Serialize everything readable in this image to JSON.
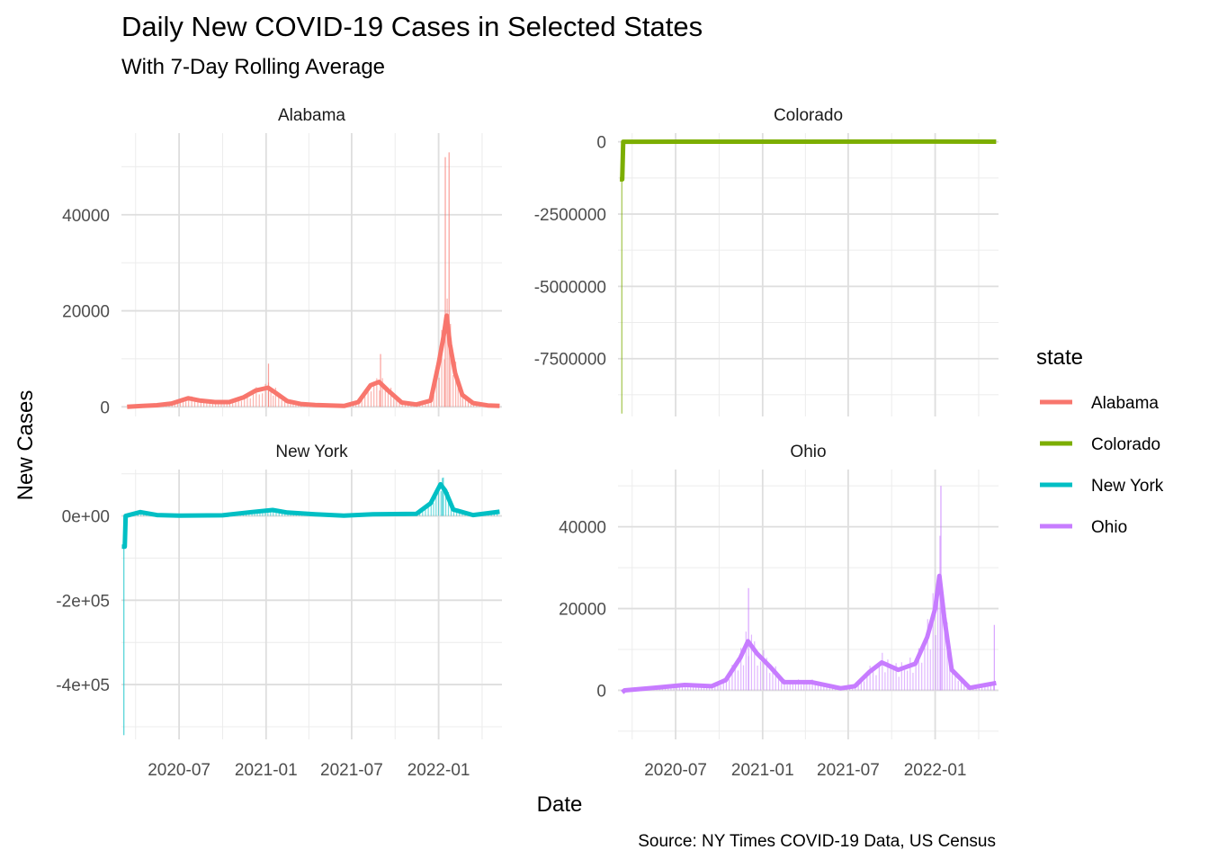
{
  "chart_data": {
    "type": "bar+line",
    "title": "Daily New COVID-19 Cases in Selected States",
    "subtitle": "With 7-Day Rolling Average",
    "xlabel": "Date",
    "ylabel": "New Cases",
    "caption": "Source: NY Times COVID-19 Data, US Census",
    "legend": {
      "title": "state",
      "position": "right",
      "entries": [
        {
          "name": "Alabama",
          "color": "#F8766D"
        },
        {
          "name": "Colorado",
          "color": "#7CAE00"
        },
        {
          "name": "New York",
          "color": "#00BFC4"
        },
        {
          "name": "Ohio",
          "color": "#C77CFF"
        }
      ]
    },
    "x_ticks": [
      "2020-07",
      "2021-01",
      "2021-07",
      "2022-01"
    ],
    "x_tick_dates": [
      "2020-07-01",
      "2021-01-01",
      "2021-07-01",
      "2022-01-01"
    ],
    "xlim": [
      "2020-03-01",
      "2022-05-15"
    ],
    "grid": true,
    "panels": [
      {
        "state": "Alabama",
        "color": "#F8766D",
        "ylim": [
          -2000,
          57000
        ],
        "y_ticks": [
          0,
          20000,
          40000
        ],
        "y_tick_labels": [
          "0",
          "20000",
          "40000"
        ],
        "rolling_avg": [
          [
            "2020-03-13",
            0
          ],
          [
            "2020-04-15",
            200
          ],
          [
            "2020-05-15",
            350
          ],
          [
            "2020-06-15",
            700
          ],
          [
            "2020-07-20",
            1800
          ],
          [
            "2020-08-15",
            1300
          ],
          [
            "2020-09-15",
            1000
          ],
          [
            "2020-10-15",
            1000
          ],
          [
            "2020-11-15",
            2000
          ],
          [
            "2020-12-10",
            3400
          ],
          [
            "2021-01-05",
            4000
          ],
          [
            "2021-01-20",
            3000
          ],
          [
            "2021-02-15",
            1200
          ],
          [
            "2021-03-15",
            600
          ],
          [
            "2021-04-15",
            400
          ],
          [
            "2021-05-15",
            300
          ],
          [
            "2021-06-15",
            200
          ],
          [
            "2021-07-15",
            1000
          ],
          [
            "2021-08-10",
            4500
          ],
          [
            "2021-08-28",
            5200
          ],
          [
            "2021-09-15",
            3500
          ],
          [
            "2021-10-15",
            900
          ],
          [
            "2021-11-15",
            500
          ],
          [
            "2021-12-15",
            1300
          ],
          [
            "2022-01-01",
            9000
          ],
          [
            "2022-01-12",
            15000
          ],
          [
            "2022-01-18",
            19000
          ],
          [
            "2022-01-25",
            13000
          ],
          [
            "2022-02-05",
            7000
          ],
          [
            "2022-02-20",
            2500
          ],
          [
            "2022-03-15",
            800
          ],
          [
            "2022-04-15",
            300
          ],
          [
            "2022-05-10",
            200
          ]
        ],
        "daily_peak": [
          [
            "2022-01-14",
            52000
          ],
          [
            "2022-01-22",
            53000
          ],
          [
            "2021-08-30",
            11000
          ],
          [
            "2021-01-05",
            9000
          ]
        ]
      },
      {
        "state": "Colorado",
        "color": "#7CAE00",
        "ylim": [
          -9500000,
          300000
        ],
        "y_ticks": [
          0,
          -2500000,
          -5000000,
          -7500000
        ],
        "y_tick_labels": [
          "0",
          "-2500000",
          "-5000000",
          "-7500000"
        ],
        "rolling_avg": [
          [
            "2020-03-05",
            -1300000
          ],
          [
            "2020-03-10",
            -1300000
          ],
          [
            "2020-03-12",
            0
          ],
          [
            "2022-01-01",
            8000
          ],
          [
            "2022-05-10",
            3000
          ]
        ],
        "daily_peak": [
          [
            "2020-03-08",
            -9400000
          ]
        ]
      },
      {
        "state": "New York",
        "color": "#00BFC4",
        "ylim": [
          -530000,
          110000
        ],
        "y_ticks": [
          0,
          -200000,
          -400000
        ],
        "y_tick_labels": [
          "0e+00",
          "-2e+05",
          "-4e+05"
        ],
        "rolling_avg": [
          [
            "2020-03-02",
            -73000
          ],
          [
            "2020-03-08",
            -73000
          ],
          [
            "2020-03-10",
            0
          ],
          [
            "2020-04-10",
            9000
          ],
          [
            "2020-05-15",
            2000
          ],
          [
            "2020-07-01",
            700
          ],
          [
            "2020-10-01",
            1500
          ],
          [
            "2020-12-01",
            9000
          ],
          [
            "2021-01-15",
            14000
          ],
          [
            "2021-02-15",
            8000
          ],
          [
            "2021-04-15",
            4000
          ],
          [
            "2021-06-15",
            500
          ],
          [
            "2021-08-15",
            4000
          ],
          [
            "2021-11-15",
            5000
          ],
          [
            "2021-12-15",
            30000
          ],
          [
            "2022-01-05",
            75000
          ],
          [
            "2022-01-15",
            60000
          ],
          [
            "2022-02-01",
            15000
          ],
          [
            "2022-03-15",
            2000
          ],
          [
            "2022-05-10",
            10000
          ]
        ],
        "daily_peak": [
          [
            "2020-03-05",
            -520000
          ],
          [
            "2022-01-08",
            90000
          ]
        ]
      },
      {
        "state": "Ohio",
        "color": "#C77CFF",
        "ylim": [
          -12000,
          54000
        ],
        "y_ticks": [
          0,
          20000,
          40000
        ],
        "y_tick_labels": [
          "0",
          "20000",
          "40000"
        ],
        "rolling_avg": [
          [
            "2020-03-10",
            -500
          ],
          [
            "2020-03-15",
            0
          ],
          [
            "2020-05-15",
            600
          ],
          [
            "2020-07-20",
            1300
          ],
          [
            "2020-09-15",
            1000
          ],
          [
            "2020-10-15",
            2500
          ],
          [
            "2020-11-15",
            8000
          ],
          [
            "2020-12-01",
            12000
          ],
          [
            "2020-12-20",
            9000
          ],
          [
            "2021-01-15",
            6000
          ],
          [
            "2021-02-15",
            2000
          ],
          [
            "2021-04-15",
            2000
          ],
          [
            "2021-06-15",
            500
          ],
          [
            "2021-07-15",
            1000
          ],
          [
            "2021-08-15",
            4500
          ],
          [
            "2021-09-10",
            6800
          ],
          [
            "2021-10-15",
            5000
          ],
          [
            "2021-11-20",
            6500
          ],
          [
            "2021-12-15",
            13000
          ],
          [
            "2022-01-01",
            20000
          ],
          [
            "2022-01-10",
            28000
          ],
          [
            "2022-01-20",
            18000
          ],
          [
            "2022-02-05",
            5000
          ],
          [
            "2022-03-15",
            600
          ],
          [
            "2022-05-10",
            1800
          ]
        ],
        "daily_peak": [
          [
            "2022-01-12",
            50000
          ],
          [
            "2020-12-01",
            25000
          ],
          [
            "2022-05-05",
            16000
          ]
        ]
      }
    ]
  }
}
